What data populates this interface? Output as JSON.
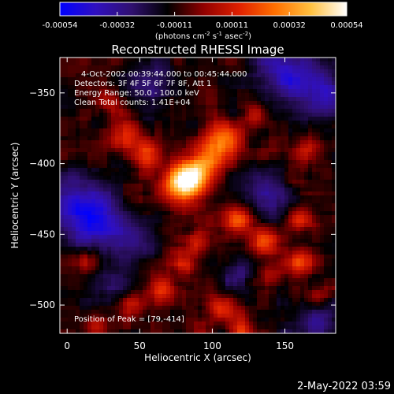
{
  "colorbar": {
    "ticks": [
      "-0.00054",
      "-0.00032",
      "-0.00011",
      "0.00011",
      "0.00032",
      "0.00054"
    ],
    "units_prefix": "(photons cm",
    "units_exp1": "-2",
    "units_mid": " s",
    "units_exp2": "-1",
    "units_mid2": " asec",
    "units_exp3": "-2",
    "units_suffix": ")",
    "colors": [
      "#0000ff",
      "#3010c0",
      "#301070",
      "#000000",
      "#900000",
      "#e02000",
      "#ff7000",
      "#ffc040",
      "#ffffff"
    ]
  },
  "chart_data": {
    "type": "heatmap",
    "title": "Reconstructed RHESSI Image",
    "xlabel": "Heliocentric X (arcsec)",
    "ylabel": "Heliocentric Y (arcsec)",
    "xlim": [
      -5,
      185
    ],
    "ylim": [
      -520,
      -325
    ],
    "xticks": [
      0,
      50,
      100,
      150
    ],
    "yticks": [
      -500,
      -450,
      -400,
      -350
    ],
    "zlim": [
      -0.00054,
      0.00054
    ],
    "grid": false,
    "peak": [
      79,
      -414
    ],
    "hotspots": [
      {
        "x": 79,
        "y": -414,
        "amp": 1.0,
        "r": 9
      },
      {
        "x": 88,
        "y": -407,
        "amp": 0.7,
        "r": 8
      },
      {
        "x": 100,
        "y": -395,
        "amp": 0.6,
        "r": 8
      },
      {
        "x": 108,
        "y": -382,
        "amp": 0.55,
        "r": 8
      },
      {
        "x": 55,
        "y": -395,
        "amp": 0.5,
        "r": 7
      },
      {
        "x": 40,
        "y": -380,
        "amp": 0.45,
        "r": 8
      },
      {
        "x": 30,
        "y": -358,
        "amp": 0.35,
        "r": 6
      },
      {
        "x": 118,
        "y": -440,
        "amp": 0.6,
        "r": 7
      },
      {
        "x": 135,
        "y": -455,
        "amp": 0.45,
        "r": 7
      },
      {
        "x": 160,
        "y": -440,
        "amp": 0.5,
        "r": 6
      },
      {
        "x": 165,
        "y": -392,
        "amp": 0.35,
        "r": 7
      },
      {
        "x": 155,
        "y": -410,
        "amp": 0.35,
        "r": 6
      },
      {
        "x": 90,
        "y": -455,
        "amp": 0.4,
        "r": 6
      },
      {
        "x": 80,
        "y": -472,
        "amp": 0.55,
        "r": 6
      },
      {
        "x": 65,
        "y": -488,
        "amp": 0.45,
        "r": 6
      },
      {
        "x": 45,
        "y": -500,
        "amp": 0.35,
        "r": 6
      },
      {
        "x": 105,
        "y": -502,
        "amp": 0.5,
        "r": 7
      },
      {
        "x": 120,
        "y": -518,
        "amp": 0.45,
        "r": 6
      },
      {
        "x": 160,
        "y": -470,
        "amp": 0.5,
        "r": 6
      },
      {
        "x": 172,
        "y": -495,
        "amp": 0.4,
        "r": 6
      },
      {
        "x": 140,
        "y": -480,
        "amp": 0.35,
        "r": 6
      },
      {
        "x": 15,
        "y": -470,
        "amp": 0.3,
        "r": 6
      },
      {
        "x": 20,
        "y": -515,
        "amp": 0.3,
        "r": 5
      },
      {
        "x": 130,
        "y": -365,
        "amp": 0.3,
        "r": 6
      }
    ],
    "coldspots": [
      {
        "x": 5,
        "y": -430,
        "amp": 0.5,
        "r": 16
      },
      {
        "x": 20,
        "y": -440,
        "amp": 0.45,
        "r": 12
      },
      {
        "x": 150,
        "y": -335,
        "amp": 0.5,
        "r": 16
      },
      {
        "x": 175,
        "y": -350,
        "amp": 0.45,
        "r": 14
      },
      {
        "x": 55,
        "y": -345,
        "amp": 0.35,
        "r": 12
      },
      {
        "x": 140,
        "y": -420,
        "amp": 0.45,
        "r": 12
      },
      {
        "x": 45,
        "y": -455,
        "amp": 0.35,
        "r": 12
      },
      {
        "x": 120,
        "y": -478,
        "amp": 0.3,
        "r": 10
      },
      {
        "x": 30,
        "y": -485,
        "amp": 0.3,
        "r": 10
      },
      {
        "x": 170,
        "y": -510,
        "amp": 0.4,
        "r": 12
      }
    ]
  },
  "annotations": {
    "time_range": "4-Oct-2002 00:39:44.000 to 00:45:44.000",
    "detectors": "Detectors: 3F 4F 5F 6F 7F 8F, Att 1",
    "energy": "Energy Range: 50.0 - 100.0 keV",
    "clean": "Clean    Total counts: 1.41E+04",
    "peak": "Position of Peak = [79,-414]",
    "footer_date": "2-May-2022 03:59"
  }
}
